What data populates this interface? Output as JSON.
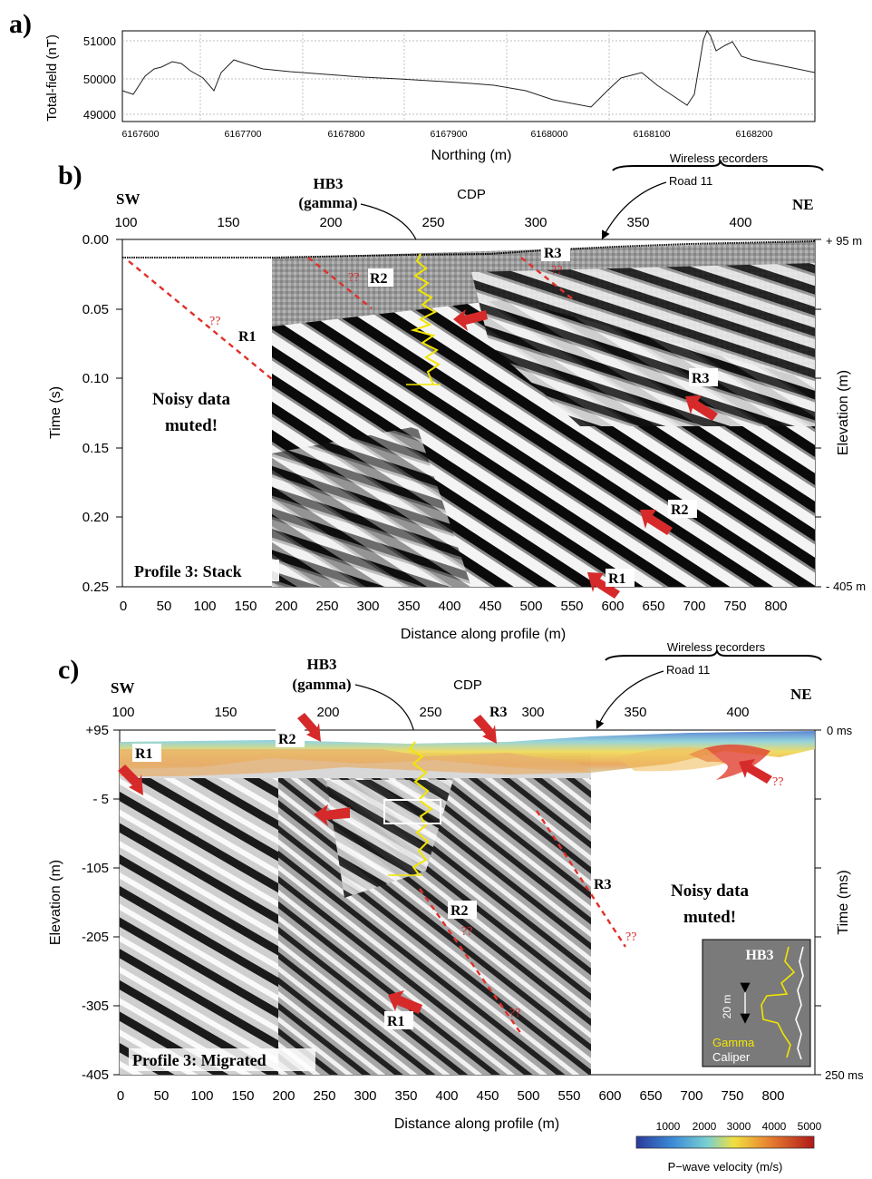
{
  "panel_a": {
    "label": "a)",
    "ylabel": "Total-field (nT)",
    "xlabel": "Northing (m)",
    "y_ticks": [
      "51000",
      "50000",
      "49000"
    ],
    "x_ticks": [
      "6167600",
      "6167700",
      "6167800",
      "6167900",
      "6168000",
      "6168100",
      "6168200"
    ]
  },
  "panel_b": {
    "label": "b)",
    "sw": "SW",
    "ne": "NE",
    "cdp_label": "CDP",
    "cdp_ticks": [
      "100",
      "150",
      "200",
      "250",
      "300",
      "350",
      "400"
    ],
    "time_label": "Time (s)",
    "time_ticks": [
      "0.00",
      "0.05",
      "0.10",
      "0.15",
      "0.20",
      "0.25"
    ],
    "elev_label": "Elevation (m)",
    "elev_top": "+ 95 m",
    "elev_bottom": "- 405 m",
    "distance_label": "Distance along profile (m)",
    "distance_ticks": [
      "0",
      "50",
      "100",
      "150",
      "200",
      "250",
      "300",
      "350",
      "400",
      "450",
      "500",
      "550",
      "600",
      "650",
      "700",
      "750",
      "800"
    ],
    "hb3_line1": "HB3",
    "hb3_line2": "(gamma)",
    "wireless": "Wireless recorders",
    "road": "Road 11",
    "noisy_line1": "Noisy data",
    "noisy_line2": "muted!",
    "profile": "Profile 3: Stack",
    "r1": "R1",
    "r2": "R2",
    "r3": "R3",
    "r3_label_right": "R3",
    "r2_label_lower": "R2",
    "r1_label_bottom": "R1",
    "qq": "??"
  },
  "panel_c": {
    "label": "c)",
    "sw": "SW",
    "ne": "NE",
    "cdp_label": "CDP",
    "cdp_ticks": [
      "100",
      "150",
      "200",
      "250",
      "300",
      "350",
      "400"
    ],
    "elev_label": "Elevation (m)",
    "elev_ticks": [
      "+95",
      "- 5",
      "-105",
      "-205",
      "-305",
      "-405"
    ],
    "time_label": "Time (ms)",
    "time_top": "0 ms",
    "time_bottom": "250 ms",
    "distance_label": "Distance along profile (m)",
    "distance_ticks": [
      "0",
      "50",
      "100",
      "150",
      "200",
      "250",
      "300",
      "350",
      "400",
      "450",
      "500",
      "550",
      "600",
      "650",
      "700",
      "750",
      "800"
    ],
    "hb3_line1": "HB3",
    "hb3_line2": "(gamma)",
    "wireless": "Wireless recorders",
    "road": "Road 11",
    "noisy_line1": "Noisy data",
    "noisy_line2": "muted!",
    "profile": "Profile 3: Migrated",
    "r1": "R1",
    "r2": "R2",
    "r3": "R3",
    "r2_lower": "R2",
    "r3_lower": "R3",
    "r1_lower": "R1",
    "qq": "??",
    "inset": {
      "title": "HB3",
      "scale": "20 m",
      "gamma": "Gamma",
      "caliper": "Caliper"
    },
    "colorbar": {
      "ticks": [
        "1000",
        "2000",
        "3000",
        "4000",
        "5000"
      ],
      "label": "P−wave velocity (m/s)"
    }
  },
  "colors": {
    "gamma": "#f2e600",
    "arrow": "#d62a2a",
    "dashed": "#e0302a"
  }
}
